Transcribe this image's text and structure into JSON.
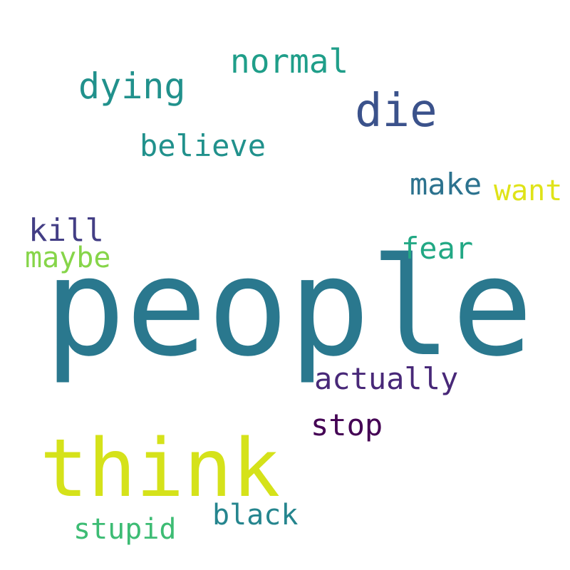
{
  "words": {
    "people": {
      "text": "people",
      "color": "#2a788e"
    },
    "think": {
      "text": "think",
      "color": "#d5e21a"
    },
    "die": {
      "text": "die",
      "color": "#3b528b"
    },
    "dying": {
      "text": "dying",
      "color": "#21918c"
    },
    "normal": {
      "text": "normal",
      "color": "#1f9e89"
    },
    "believe": {
      "text": "believe",
      "color": "#21918c"
    },
    "make": {
      "text": "make",
      "color": "#2c728e"
    },
    "want": {
      "text": "want",
      "color": "#dfe318"
    },
    "kill": {
      "text": "kill",
      "color": "#433e85"
    },
    "maybe": {
      "text": "maybe",
      "color": "#86d549"
    },
    "fear": {
      "text": "fear",
      "color": "#22a884"
    },
    "actually": {
      "text": "actually",
      "color": "#482878"
    },
    "stop": {
      "text": "stop",
      "color": "#440154"
    },
    "black": {
      "text": "black",
      "color": "#25858e"
    },
    "stupid": {
      "text": "stupid",
      "color": "#3dbc74"
    }
  }
}
